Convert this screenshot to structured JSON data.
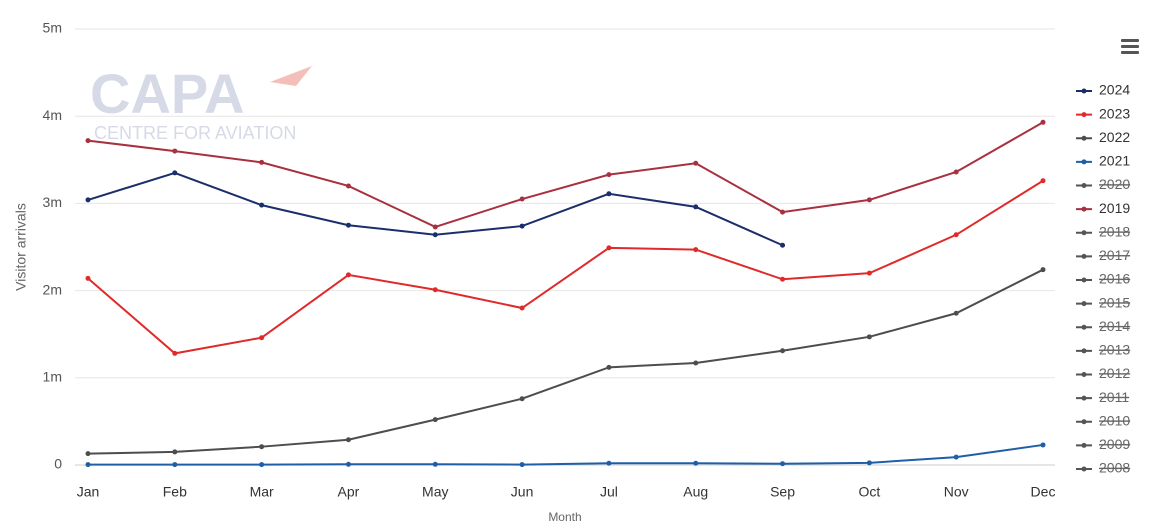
{
  "watermark": {
    "brand": "CAPA",
    "tagline": "CENTRE FOR AVIATION"
  },
  "chart_data": {
    "type": "line",
    "y_label": "Visitor arrivals",
    "x_label": "Month",
    "categories": [
      "Jan",
      "Feb",
      "Mar",
      "Apr",
      "May",
      "Jun",
      "Jul",
      "Aug",
      "Sep",
      "Oct",
      "Nov",
      "Dec"
    ],
    "ylim": [
      0,
      5000000
    ],
    "yticks": [
      0,
      {
        "value": 1000000,
        "label": "1m"
      },
      {
        "value": 2000000,
        "label": "2m"
      },
      {
        "value": 3000000,
        "label": "3m"
      },
      {
        "value": 4000000,
        "label": "4m"
      },
      {
        "value": 5000000,
        "label": "5m"
      }
    ],
    "grid": true,
    "legend": "right",
    "series": [
      {
        "name": "2024",
        "color": "#1a2e6b",
        "values": [
          3040000,
          3350000,
          2980000,
          2750000,
          2640000,
          2740000,
          3110000,
          2960000,
          2520000,
          null,
          null,
          null
        ]
      },
      {
        "name": "2023",
        "color": "#e02a2a",
        "values": [
          2140000,
          1280000,
          1460000,
          2180000,
          2010000,
          1800000,
          2490000,
          2470000,
          2130000,
          2200000,
          2640000,
          3260000
        ]
      },
      {
        "name": "2022",
        "color": "#4d4d4d",
        "values": [
          130000,
          150000,
          210000,
          290000,
          520000,
          760000,
          1120000,
          1170000,
          1310000,
          1470000,
          1740000,
          2240000
        ]
      },
      {
        "name": "2021",
        "color": "#1f5fa8",
        "values": [
          5000,
          5000,
          5000,
          8000,
          8000,
          5000,
          20000,
          20000,
          15000,
          25000,
          90000,
          230000
        ]
      },
      {
        "name": "2020",
        "color": "#555555",
        "hidden": true
      },
      {
        "name": "2019",
        "color": "#a8303f",
        "values": [
          3720000,
          3600000,
          3470000,
          3200000,
          2730000,
          3050000,
          3330000,
          3460000,
          2900000,
          3040000,
          3360000,
          3930000
        ]
      },
      {
        "name": "2018",
        "color": "#555555",
        "hidden": true
      },
      {
        "name": "2017",
        "color": "#555555",
        "hidden": true
      },
      {
        "name": "2016",
        "color": "#555555",
        "hidden": true
      },
      {
        "name": "2015",
        "color": "#555555",
        "hidden": true
      },
      {
        "name": "2014",
        "color": "#555555",
        "hidden": true
      },
      {
        "name": "2013",
        "color": "#555555",
        "hidden": true
      },
      {
        "name": "2012",
        "color": "#555555",
        "hidden": true
      },
      {
        "name": "2011",
        "color": "#555555",
        "hidden": true
      },
      {
        "name": "2010",
        "color": "#555555",
        "hidden": true
      },
      {
        "name": "2009",
        "color": "#555555",
        "hidden": true
      },
      {
        "name": "2008",
        "color": "#555555",
        "hidden": true
      }
    ]
  }
}
